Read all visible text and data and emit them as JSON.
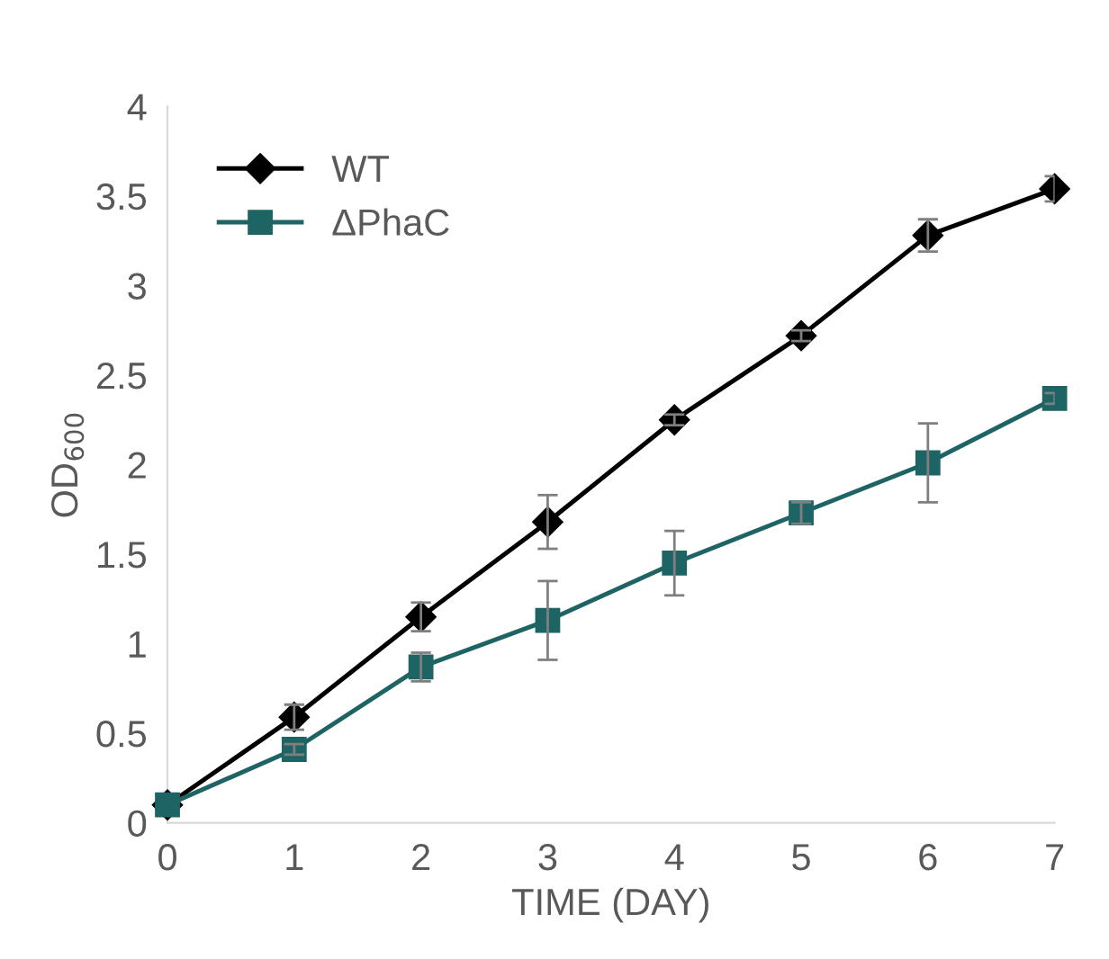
{
  "chart_data": {
    "type": "line",
    "xlabel": "TIME (DAY)",
    "ylabel": "OD$_{600}$",
    "x": [
      0,
      1,
      2,
      3,
      4,
      5,
      6,
      7
    ],
    "series": [
      {
        "name": "WT",
        "color": "#000000",
        "marker": "diamond",
        "values": [
          0.1,
          0.59,
          1.15,
          1.68,
          2.25,
          2.72,
          3.28,
          3.54
        ],
        "errors": [
          null,
          0.07,
          0.08,
          0.15,
          0.03,
          0.03,
          0.09,
          0.07
        ]
      },
      {
        "name": "ΔPhaC",
        "color": "#1f6464",
        "marker": "square",
        "values": [
          0.1,
          0.41,
          0.87,
          1.13,
          1.45,
          1.73,
          2.01,
          2.37
        ],
        "errors": [
          null,
          0.03,
          0.08,
          0.22,
          0.18,
          0.06,
          0.22,
          0.03
        ]
      }
    ],
    "xlim": [
      0,
      7
    ],
    "xticks": [
      0,
      1,
      2,
      3,
      4,
      5,
      6,
      7
    ],
    "ylim": [
      0,
      4
    ],
    "yticks": [
      0,
      0.5,
      1,
      1.5,
      2,
      2.5,
      3,
      3.5,
      4
    ],
    "grid": false,
    "legend": "top left",
    "line_style": "solid"
  }
}
